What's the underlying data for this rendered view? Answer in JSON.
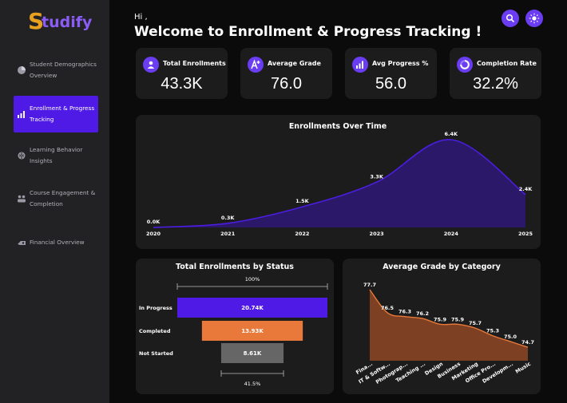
{
  "app": {
    "logo_initial": "S",
    "logo_rest": "tudify"
  },
  "sidebar": {
    "items": [
      {
        "line1": "Student Demographics",
        "line2": "Overview",
        "icon": "pie-chart-icon"
      },
      {
        "line1": "Enrollment & Progress",
        "line2": "Tracking",
        "icon": "bar-chart-icon",
        "active": true
      },
      {
        "line1": "Learning Behavior",
        "line2": "Insights",
        "icon": "brain-icon"
      },
      {
        "line1": "Course Engagement &",
        "line2": "Completion",
        "icon": "people-icon"
      },
      {
        "line1": "Financial Overview",
        "line2": "",
        "icon": "money-icon"
      }
    ]
  },
  "header": {
    "greeting": "Hi ,",
    "title": "Welcome to Enrollment & Progress Tracking !"
  },
  "top_buttons": [
    {
      "icon": "search-icon"
    },
    {
      "icon": "sun-icon"
    }
  ],
  "colors": {
    "accent": "#6a3cf2",
    "active_nav": "#4f1ae6",
    "orange": "#e8793a",
    "grey": "#666666",
    "area_fill": "#2c1868"
  },
  "kpis": [
    {
      "label": "Total Enrollments",
      "value": "43.3K",
      "icon": "user-icon"
    },
    {
      "label": "Average Grade",
      "value": "76.0",
      "icon": "grade-a-plus-icon"
    },
    {
      "label": "Avg Progress %",
      "value": "56.0",
      "icon": "progress-bars-icon"
    },
    {
      "label": "Completion Rate",
      "value": "32.2%",
      "icon": "circle-progress-icon"
    }
  ],
  "chart_data": [
    {
      "type": "area",
      "title": "Enrollments Over Time",
      "x": [
        "2020",
        "2021",
        "2022",
        "2023",
        "2024",
        "2025"
      ],
      "values": [
        0.0,
        0.3,
        1.5,
        3.3,
        6.4,
        2.4
      ],
      "labels": [
        "0.0K",
        "0.3K",
        "1.5K",
        "3.3K",
        "6.4K",
        "2.4K"
      ],
      "ylim": [
        0,
        6.4
      ],
      "grid": false
    },
    {
      "type": "bar",
      "title": "Total Enrollments by Status",
      "categories": [
        "In Progress",
        "Completed",
        "Not Started"
      ],
      "values": [
        20.74,
        13.93,
        8.61
      ],
      "labels": [
        "20.74K",
        "13.93K",
        "8.61K"
      ],
      "top_percent": "100%",
      "bottom_percent": "41.5%"
    },
    {
      "type": "area",
      "title": "Average Grade by Category",
      "categories": [
        "Fina...",
        "IT & Softw...",
        "Photograp...",
        "Teaching ...",
        "Design",
        "Business",
        "Marketing",
        "Office Pro...",
        "Developm...",
        "Music"
      ],
      "values": [
        77.7,
        76.5,
        76.3,
        76.2,
        75.9,
        75.9,
        75.7,
        75.3,
        75.0,
        74.7
      ],
      "labels": [
        "77.7",
        "76.5",
        "76.3",
        "76.2",
        "75.9",
        "75.9",
        "75.7",
        "75.3",
        "75.0",
        "74.7"
      ],
      "ylim": [
        74.0,
        77.7
      ]
    }
  ]
}
